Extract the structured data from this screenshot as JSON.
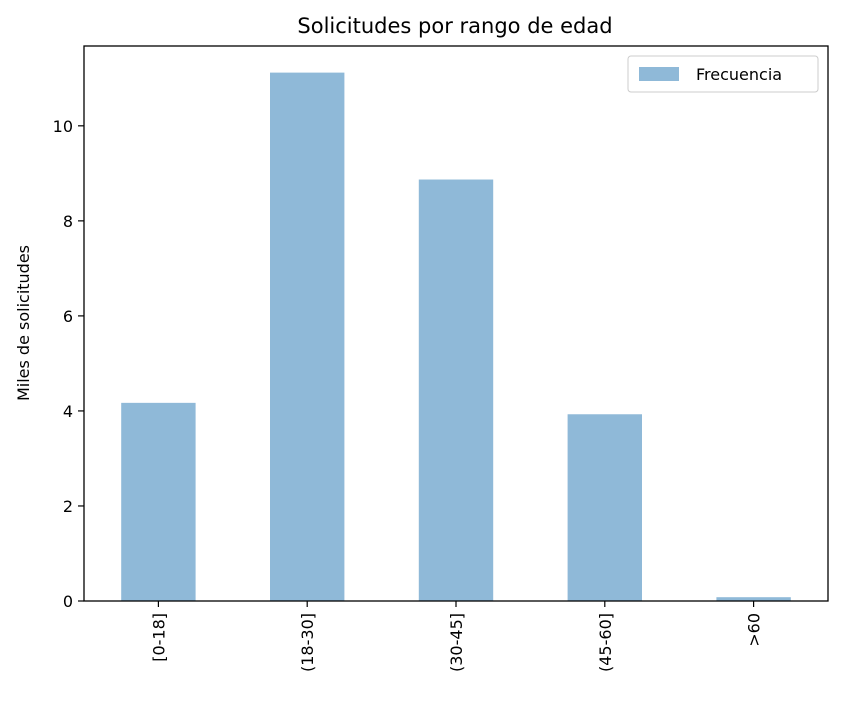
{
  "chart_data": {
    "type": "bar",
    "title": "Solicitudes por rango de edad",
    "xlabel": "",
    "ylabel": "Miles de solicitudes",
    "categories": [
      "[0-18]",
      "(18-30]",
      "(30-45]",
      "(45-60]",
      ">60"
    ],
    "series": [
      {
        "name": "Frecuencia",
        "values": [
          4.17,
          11.12,
          8.87,
          3.93,
          0.08
        ],
        "color": "#8fb9d8"
      }
    ],
    "ylim": [
      0,
      11.68
    ],
    "yticks": [
      0,
      2,
      4,
      6,
      8,
      10
    ],
    "grid": false,
    "legend": "top-right"
  }
}
